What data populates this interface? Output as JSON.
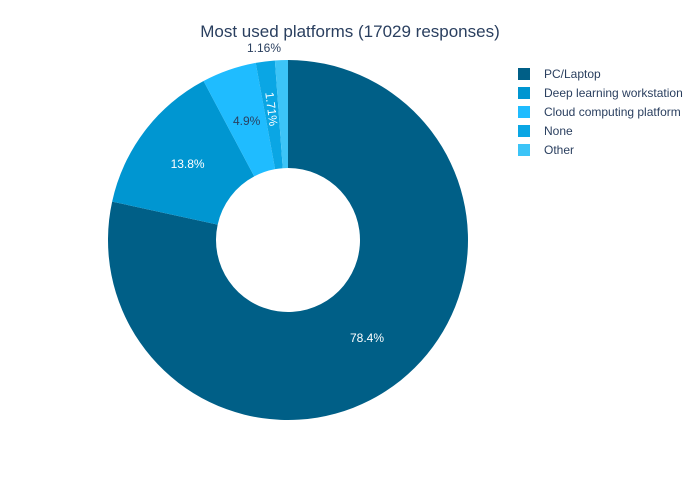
{
  "chart_data": {
    "type": "pie",
    "hole": true,
    "title": "Most used platforms (17029 responses)",
    "legend_position": "top-right",
    "slices": [
      {
        "label": "PC/Laptop",
        "value": 78.4,
        "display": "78.4%",
        "color": "#005f87",
        "label_color": "#ffffff",
        "label_placement": "inside"
      },
      {
        "label": "Deep learning workstation",
        "value": 13.8,
        "display": "13.8%",
        "color": "#0096d1",
        "label_color": "#ffffff",
        "label_placement": "inside"
      },
      {
        "label": "Cloud computing platform",
        "value": 4.9,
        "display": "4.9%",
        "color": "#1fbcff",
        "label_color": "#2a3f5f",
        "label_placement": "inside"
      },
      {
        "label": "None",
        "value": 1.71,
        "display": "1.71%",
        "color": "#0aa6e4",
        "label_color": "#ffffff",
        "label_placement": "inside"
      },
      {
        "label": "Other",
        "value": 1.16,
        "display": "1.16%",
        "color": "#3cc4f7",
        "label_color": "#2a3f5f",
        "label_placement": "outside"
      }
    ]
  }
}
